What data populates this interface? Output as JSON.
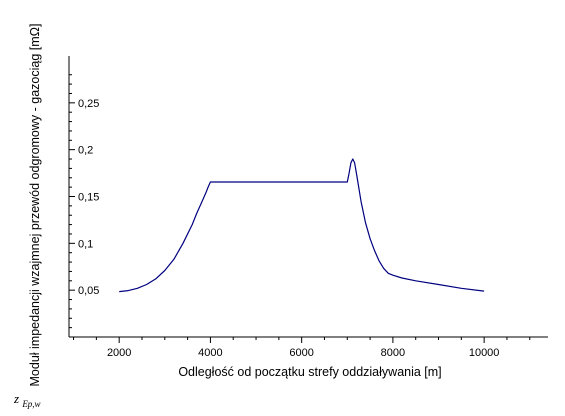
{
  "chart_data": {
    "type": "line",
    "xlabel": "Odległość od początku strefy oddziaływania [m]",
    "ylabel": "Moduł impedancji wzajmnej przewód odgromowy - gazociąg [mΩ]",
    "xlim": [
      900,
      11400
    ],
    "ylim": [
      0,
      0.3
    ],
    "xticks": [
      "2000",
      "4000",
      "6000",
      "8000",
      "10000"
    ],
    "xtick_values": [
      2000,
      4000,
      6000,
      8000,
      10000
    ],
    "yticks": [
      "0,05",
      "0,1",
      "0,15",
      "0,2",
      "0,25"
    ],
    "ytick_values": [
      0.05,
      0.1,
      0.15,
      0.2,
      0.25
    ],
    "grid": false,
    "series": [
      {
        "color": "#000080",
        "x": [
          2000,
          2200,
          2400,
          2600,
          2800,
          3000,
          3200,
          3400,
          3600,
          3700,
          3800,
          3900,
          3950,
          4000,
          4050,
          5000,
          6000,
          7000,
          7040,
          7080,
          7120,
          7160,
          7200,
          7250,
          7300,
          7400,
          7500,
          7600,
          7700,
          7800,
          7900,
          8000,
          8200,
          8500,
          9000,
          9500,
          10000
        ],
        "y": [
          0.0485,
          0.0495,
          0.052,
          0.056,
          0.062,
          0.071,
          0.083,
          0.1,
          0.12,
          0.132,
          0.143,
          0.154,
          0.16,
          0.1655,
          0.1655,
          0.1655,
          0.1655,
          0.1655,
          0.175,
          0.186,
          0.19,
          0.186,
          0.175,
          0.16,
          0.145,
          0.122,
          0.105,
          0.092,
          0.081,
          0.073,
          0.068,
          0.066,
          0.063,
          0.06,
          0.056,
          0.052,
          0.049
        ]
      }
    ]
  },
  "caption": {
    "main": "z",
    "sub": "Ep,w"
  }
}
